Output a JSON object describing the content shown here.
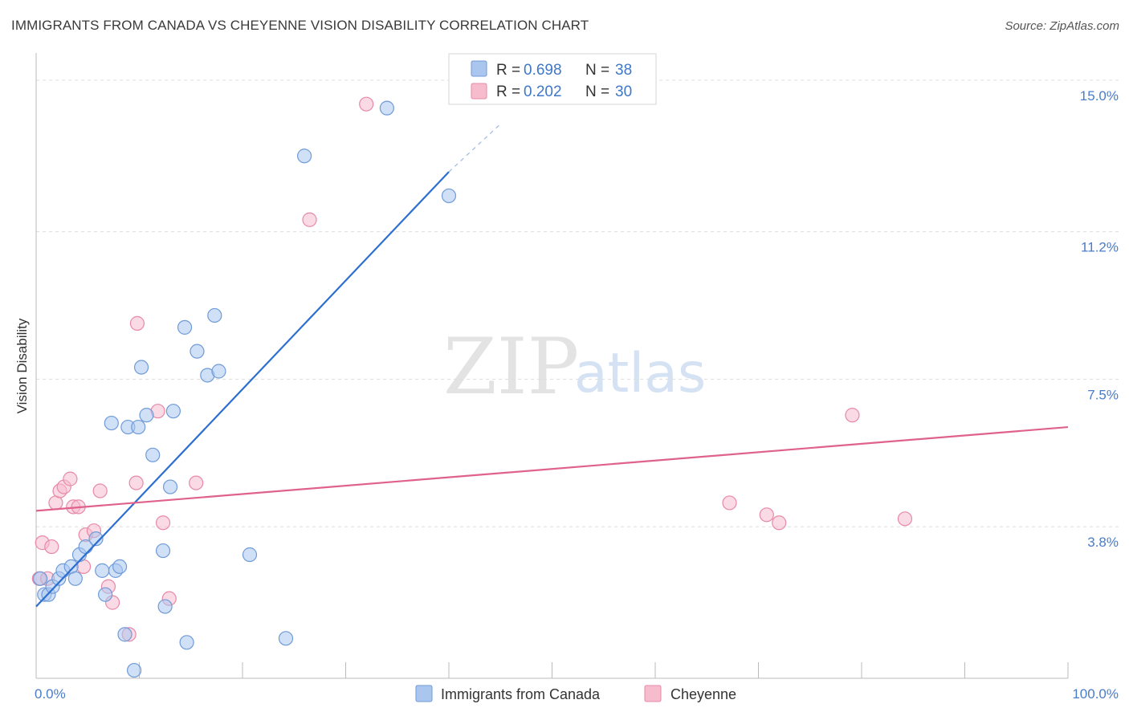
{
  "header": {
    "title": "IMMIGRANTS FROM CANADA VS CHEYENNE VISION DISABILITY CORRELATION CHART",
    "source": "Source: ZipAtlas.com"
  },
  "watermark": {
    "zip": "ZIP",
    "atlas": "atlas"
  },
  "legend": {
    "rows": [
      {
        "r_label": "R = ",
        "r_value": "0.698",
        "n_label": "N = ",
        "n_value": "38"
      },
      {
        "r_label": "R = ",
        "r_value": "0.202",
        "n_label": "N = ",
        "n_value": "30"
      }
    ]
  },
  "colors": {
    "blue_fill": "#aac6ee",
    "blue_stroke": "#6f9bd8",
    "blue_line": "#2c6fd0",
    "pink_fill": "#f6bccd",
    "pink_stroke": "#e889a6",
    "pink_line": "#e0628c",
    "grid": "#dddddd",
    "axis": "#bbbbbb",
    "tick_label": "#4a7cc9"
  },
  "chart_data": {
    "type": "scatter",
    "title": "IMMIGRANTS FROM CANADA VS CHEYENNE VISION DISABILITY CORRELATION CHART",
    "xlabel": "",
    "ylabel": "Vision Disability",
    "xlim": [
      0,
      100
    ],
    "ylim": [
      0,
      15.4
    ],
    "x_tick_labels": [
      "0.0%",
      "100.0%"
    ],
    "y_ticks": [
      3.8,
      7.5,
      11.2,
      15.0
    ],
    "y_tick_labels": [
      "3.8%",
      "7.5%",
      "11.2%",
      "15.0%"
    ],
    "grid": "horizontal dashed",
    "legend_position": "top-center",
    "series": [
      {
        "name": "Immigrants from Canada",
        "color": "#aac6ee",
        "r": 0.698,
        "n": 38,
        "trend": {
          "x": [
            0,
            40
          ],
          "y": [
            1.8,
            12.7
          ],
          "dash_to": [
            45,
            13.9
          ]
        },
        "points": [
          [
            0.4,
            2.5
          ],
          [
            0.8,
            2.1
          ],
          [
            1.2,
            2.1
          ],
          [
            1.6,
            2.3
          ],
          [
            2.2,
            2.5
          ],
          [
            2.6,
            2.7
          ],
          [
            3.4,
            2.8
          ],
          [
            3.8,
            2.5
          ],
          [
            4.2,
            3.1
          ],
          [
            4.8,
            3.3
          ],
          [
            5.8,
            3.5
          ],
          [
            7.3,
            6.4
          ],
          [
            6.4,
            2.7
          ],
          [
            6.7,
            2.1
          ],
          [
            7.7,
            2.7
          ],
          [
            8.1,
            2.8
          ],
          [
            8.6,
            1.1
          ],
          [
            8.9,
            6.3
          ],
          [
            9.5,
            0.2
          ],
          [
            9.9,
            6.3
          ],
          [
            10.2,
            7.8
          ],
          [
            10.7,
            6.6
          ],
          [
            11.3,
            5.6
          ],
          [
            12.3,
            3.2
          ],
          [
            12.5,
            1.8
          ],
          [
            13.0,
            4.8
          ],
          [
            13.3,
            6.7
          ],
          [
            14.4,
            8.8
          ],
          [
            14.6,
            0.9
          ],
          [
            15.6,
            8.2
          ],
          [
            16.6,
            7.6
          ],
          [
            17.3,
            9.1
          ],
          [
            17.7,
            7.7
          ],
          [
            20.7,
            3.1
          ],
          [
            24.2,
            1.0
          ],
          [
            26.0,
            13.1
          ],
          [
            34.0,
            14.3
          ],
          [
            40.0,
            12.1
          ]
        ]
      },
      {
        "name": "Cheyenne",
        "color": "#f6bccd",
        "r": 0.202,
        "n": 30,
        "trend": {
          "x": [
            0,
            100
          ],
          "y": [
            4.2,
            6.3
          ]
        },
        "points": [
          [
            0.3,
            2.5
          ],
          [
            0.6,
            3.4
          ],
          [
            1.1,
            2.5
          ],
          [
            1.5,
            3.3
          ],
          [
            1.9,
            4.4
          ],
          [
            2.3,
            4.7
          ],
          [
            2.7,
            4.8
          ],
          [
            3.3,
            5.0
          ],
          [
            3.6,
            4.3
          ],
          [
            4.1,
            4.3
          ],
          [
            4.6,
            2.8
          ],
          [
            4.8,
            3.6
          ],
          [
            5.6,
            3.7
          ],
          [
            6.2,
            4.7
          ],
          [
            7.0,
            2.3
          ],
          [
            7.4,
            1.9
          ],
          [
            9.0,
            1.1
          ],
          [
            9.7,
            4.9
          ],
          [
            9.8,
            8.9
          ],
          [
            11.8,
            6.7
          ],
          [
            12.3,
            3.9
          ],
          [
            12.9,
            2.0
          ],
          [
            15.5,
            4.9
          ],
          [
            26.5,
            11.5
          ],
          [
            32.0,
            14.4
          ],
          [
            67.2,
            4.4
          ],
          [
            70.8,
            4.1
          ],
          [
            72.0,
            3.9
          ],
          [
            79.1,
            6.6
          ],
          [
            84.2,
            4.0
          ]
        ]
      }
    ]
  }
}
